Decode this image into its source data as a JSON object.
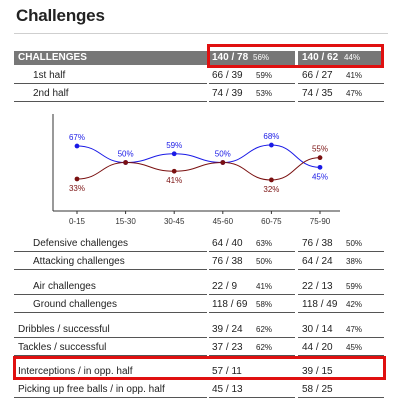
{
  "title": "Challenges",
  "header": {
    "label": "CHALLENGES",
    "team1": {
      "value": "140 / 78",
      "pct": "56%"
    },
    "team2": {
      "value": "140 / 62",
      "pct": "44%"
    }
  },
  "halves": [
    {
      "label": "1st half",
      "t1": "66 / 39",
      "p1": "59%",
      "t2": "66 / 27",
      "p2": "41%"
    },
    {
      "label": "2nd half",
      "t1": "74 / 39",
      "p1": "53%",
      "t2": "74 / 35",
      "p2": "47%"
    }
  ],
  "chart_data": {
    "type": "line",
    "categories": [
      "0-15",
      "15-30",
      "30-45",
      "45-60",
      "60-75",
      "75-90"
    ],
    "ylim": [
      0,
      100
    ],
    "series": [
      {
        "color": "#1a1ae6",
        "values": [
          67,
          50,
          59,
          50,
          68,
          45
        ],
        "labels": [
          "67%",
          "50%",
          "59%",
          "50%",
          "68%",
          "45%"
        ]
      },
      {
        "color": "#7a1010",
        "values": [
          33,
          50,
          41,
          50,
          32,
          55
        ],
        "labels": [
          "33%",
          "",
          "41%",
          "",
          "32%",
          "55%"
        ]
      }
    ]
  },
  "stats": [
    {
      "label": "Defensive challenges",
      "t1": "64 / 40",
      "p1": "63%",
      "t2": "76 / 38",
      "p2": "50%"
    },
    {
      "label": "Attacking challenges",
      "t1": "76 / 38",
      "p1": "50%",
      "t2": "64 / 24",
      "p2": "38%"
    },
    {
      "label": "Air challenges",
      "t1": "22 / 9",
      "p1": "41%",
      "t2": "22 / 13",
      "p2": "59%"
    },
    {
      "label": "Ground challenges",
      "t1": "118 / 69",
      "p1": "58%",
      "t2": "118 / 49",
      "p2": "42%"
    },
    {
      "label": "Dribbles / successful",
      "t1": "39 / 24",
      "p1": "62%",
      "t2": "30 / 14",
      "p2": "47%"
    },
    {
      "label": "Tackles / successful",
      "t1": "37 / 23",
      "p1": "62%",
      "t2": "44 / 20",
      "p2": "45%"
    },
    {
      "label": "Interceptions / in opp. half",
      "t1": "57 / 11",
      "p1": "",
      "t2": "39 / 15",
      "p2": ""
    },
    {
      "label": "Picking up free balls / in opp. half",
      "t1": "45 / 13",
      "p1": "",
      "t2": "58 / 25",
      "p2": ""
    }
  ],
  "colors": {
    "header_band": "#777777",
    "highlight": "#e01010",
    "team1_line": "#1a1ae6",
    "team2_line": "#7a1010"
  }
}
